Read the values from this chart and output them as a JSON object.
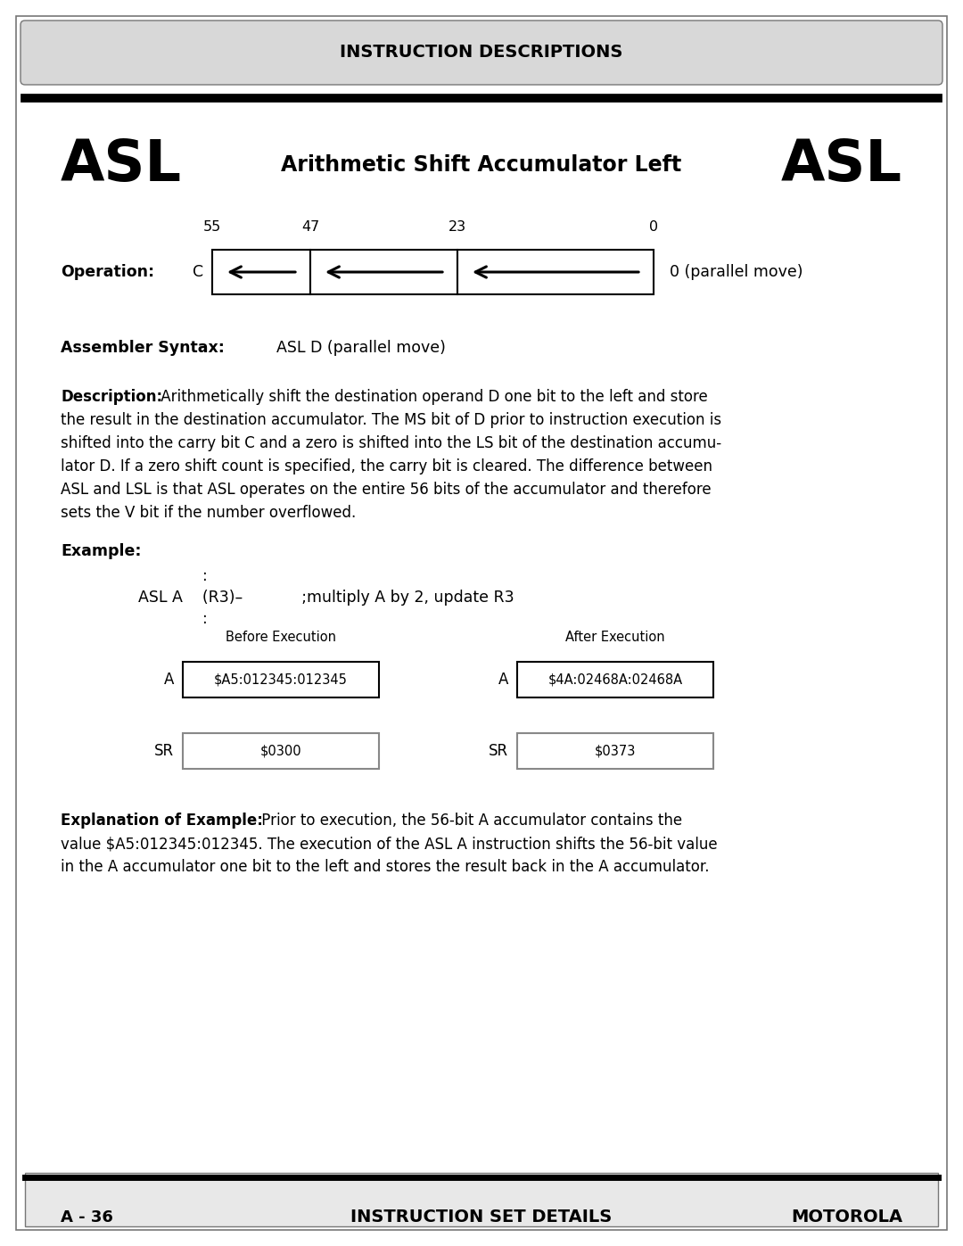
{
  "title_header": "INSTRUCTION DESCRIPTIONS",
  "asl_left": "ASL",
  "asl_right": "ASL",
  "subtitle": "Arithmetic Shift Accumulator Left",
  "operation_label": "Operation:",
  "operation_c": "C",
  "operation_right": "0 (parallel move)",
  "bit_labels": [
    "55",
    "47",
    "23",
    "0"
  ],
  "assembler_syntax_label": "Assembler Syntax:",
  "assembler_syntax_value": "ASL D (parallel move)",
  "description_bold": "Description:",
  "description_line1": " Arithmetically shift the destination operand D one bit to the left and store",
  "description_line2": "the result in the destination accumulator. The MS bit of D prior to instruction execution is",
  "description_line3": "shifted into the carry bit C and a zero is shifted into the LS bit of the destination accumu-",
  "description_line4": "lator D. If a zero shift count is specified, the carry bit is cleared. The difference between",
  "description_line5": "ASL and LSL is that ASL operates on the entire 56 bits of the accumulator and therefore",
  "description_line6": "sets the V bit if the number overflowed.",
  "example_label": "Example:",
  "example_dot": ":",
  "example_code": "ASL A    (R3)–            ;multiply A by 2, update R3",
  "before_label": "Before Execution",
  "after_label": "After Execution",
  "reg_a_label": "A",
  "reg_sr_label": "SR",
  "before_a_val": "$A5:012345:012345",
  "after_a_val": "$4A:02468A:02468A",
  "before_sr_val": "$0300",
  "after_sr_val": "$0373",
  "explanation_bold": "Explanation of Example:",
  "explanation_line1": " Prior to execution, the 56-bit A accumulator contains the",
  "explanation_line2": "value $A5:012345:012345. The execution of the ASL A instruction shifts the 56-bit value",
  "explanation_line3": "in the A accumulator one bit to the left and stores the result back in the A accumulator.",
  "footer_left": "A - 36",
  "footer_center": "INSTRUCTION SET DETAILS",
  "footer_right": "MOTOROLA",
  "bg_color": "#ffffff",
  "header_bg": "#d8d8d8",
  "text_color": "#000000",
  "sr_border": "#888888"
}
